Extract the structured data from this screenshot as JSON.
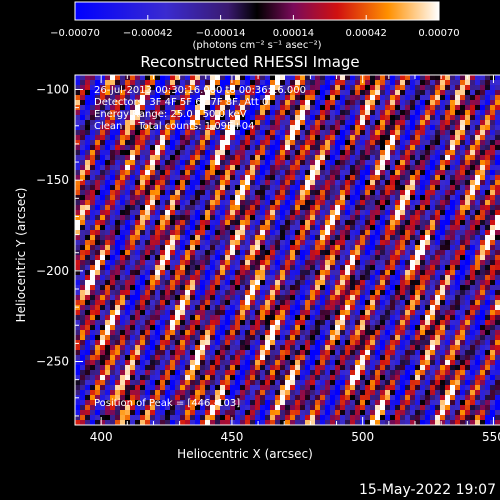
{
  "chart_data": {
    "type": "heatmap",
    "title": "Reconstructed RHESSI Image",
    "xlabel": "Heliocentric X (arcsec)",
    "ylabel": "Heliocentric Y (arcsec)",
    "xlim": [
      390,
      585
    ],
    "ylim": [
      -285,
      -92
    ],
    "x_ticks": [
      400,
      450,
      500,
      550
    ],
    "y_ticks": [
      -100,
      -150,
      -200,
      -250
    ],
    "colorbar": {
      "range": [
        -0.0007,
        0.0007
      ],
      "ticks": [
        "-0.00070",
        "-0.00042",
        "-0.00014",
        "0.00014",
        "0.00042",
        "0.00070"
      ],
      "tick_values": [
        -0.0007,
        -0.00042,
        -0.00014,
        0.00014,
        0.00042,
        0.0007
      ],
      "units": "(photons cm⁻² s⁻¹ asec⁻²)"
    },
    "annotations": [
      "26-Jul-2013 00:30:16.000 to 00:36:16.000",
      "Detectors: 3F 4F 5F 6F 7F 8F, Att 0",
      "Energy Range: 25.0 - 50.0 keV",
      "Clean     Total counts: 1.09E+04"
    ],
    "peak_label": "Position of Peak = [446,-103]",
    "peak": [
      446,
      -103
    ],
    "pattern": "diagonal fringe stripes, alternating positive (red/yellow) and negative (purple/blue) values"
  },
  "footer": {
    "timestamp": "15-May-2022 19:07"
  }
}
